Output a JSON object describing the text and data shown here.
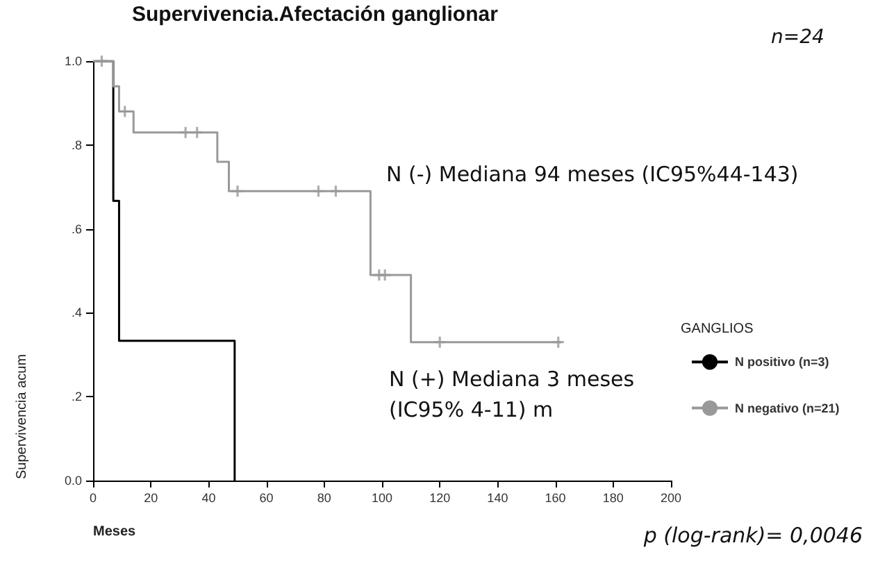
{
  "chart_data": {
    "type": "step",
    "title": "Supervivencia.Afectación ganglionar",
    "xlabel": "Meses",
    "ylabel": "Supervivencia acum",
    "legend_title": "GANGLIOS",
    "annotations": [
      "N (-) Mediana 94 meses (IC95%44-143)",
      "N (+) Mediana 3 meses\n(IC95% 4-11) m",
      "n=24",
      "p (log-rank)= 0,0046"
    ],
    "series": [
      {
        "name": "N positivo (n=3)",
        "color": "#000000",
        "x": [
          0,
          7,
          9,
          49
        ],
        "values": [
          1,
          0.667,
          0.333,
          0
        ]
      },
      {
        "name": "N negativo (n=21)",
        "color": "#999999",
        "x": [
          0,
          7,
          9,
          14,
          43,
          47,
          96,
          110,
          162
        ],
        "values": [
          1,
          0.94,
          0.88,
          0.83,
          0.76,
          0.69,
          0.49,
          0.33,
          0.33
        ]
      },
      {
        "type": "scatter",
        "marker": "cross",
        "color": "#999999",
        "x": [
          3,
          11,
          32,
          36,
          50,
          78,
          84,
          99,
          101,
          120,
          161
        ],
        "values": [
          1,
          0.88,
          0.83,
          0.83,
          0.69,
          0.69,
          0.69,
          0.49,
          0.49,
          0.33,
          0.33
        ]
      }
    ],
    "xlim": [
      0,
      200
    ],
    "xticks": [
      0,
      20,
      40,
      60,
      80,
      100,
      120,
      140,
      160,
      180,
      200
    ],
    "ylim": [
      0,
      1
    ],
    "yticks": [
      {
        "value": 0,
        "label": "0.0"
      },
      {
        "value": 0.2,
        "label": ".2"
      },
      {
        "value": 0.4,
        "label": ".4"
      },
      {
        "value": 0.6,
        "label": ".6"
      },
      {
        "value": 0.8,
        "label": ".8"
      },
      {
        "value": 1,
        "label": "1.0"
      }
    ],
    "grid": false,
    "legend": "right",
    "marker": "none"
  }
}
